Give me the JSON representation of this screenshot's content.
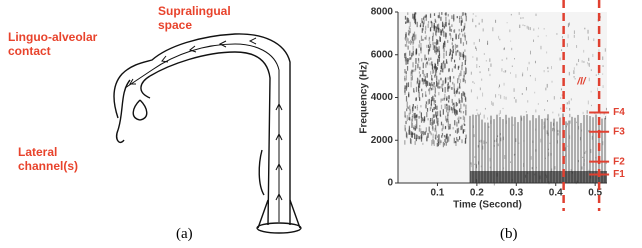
{
  "panel_a": {
    "labels": [
      "Supralingual space",
      "Linguo-alveolar contact",
      "Lateral channel(s)"
    ],
    "caption": "(a)"
  },
  "panel_b": {
    "type": "spectrogram",
    "xlabel": "Time (Second)",
    "ylabel": "Frequency (Hz)",
    "xlim": [
      0,
      0.53
    ],
    "ylim": [
      0,
      8000
    ],
    "xticks": [
      0.1,
      0.2,
      0.3,
      0.4,
      0.5
    ],
    "yticks": [
      0,
      2000,
      4000,
      6000,
      8000
    ],
    "annotation": "/l/",
    "segment": [
      0.42,
      0.51
    ],
    "formants": [
      {
        "label": "F4",
        "value": 3300
      },
      {
        "label": "F3",
        "value": 2400
      },
      {
        "label": "F2",
        "value": 1000
      },
      {
        "label": "F1",
        "value": 400
      }
    ],
    "caption": "(b)"
  }
}
